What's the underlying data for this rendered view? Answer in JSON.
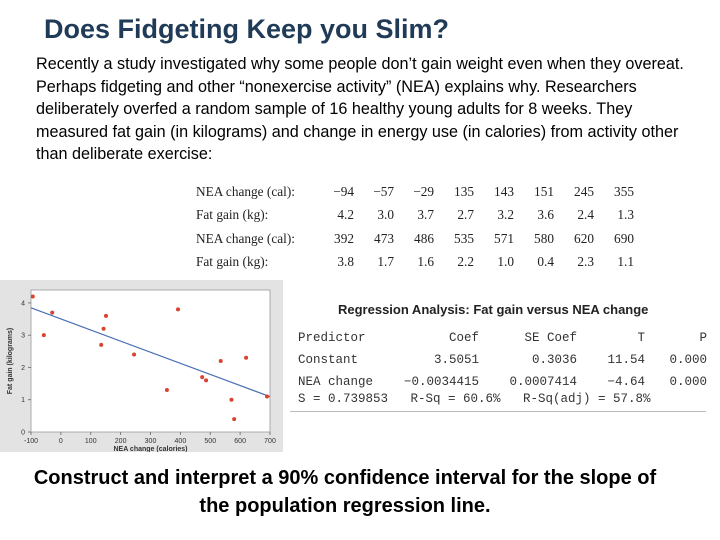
{
  "title": "Does Fidgeting Keep you Slim?",
  "intro": "Recently a study investigated why some people don’t gain weight even when they overeat. Perhaps fidgeting and other “nonexercise activity” (NEA) explains why. Researchers deliberately overfed a random sample of 16 healthy young adults for 8 weeks. They measured fat gain (in kilograms) and change in energy use (in calories) from activity other than deliberate exercise:",
  "data_table": {
    "rows": [
      {
        "label": "NEA change (cal):",
        "values": [
          "−94",
          "−57",
          "−29",
          "135",
          "143",
          "151",
          "245",
          "355"
        ]
      },
      {
        "label": "Fat gain (kg):",
        "values": [
          "4.2",
          "3.0",
          "3.7",
          "2.7",
          "3.2",
          "3.6",
          "2.4",
          "1.3"
        ]
      },
      {
        "label": "NEA change (cal):",
        "values": [
          "392",
          "473",
          "486",
          "535",
          "571",
          "580",
          "620",
          "690"
        ]
      },
      {
        "label": "Fat gain (kg):",
        "values": [
          "3.8",
          "1.7",
          "1.6",
          "2.2",
          "1.0",
          "0.4",
          "2.3",
          "1.1"
        ]
      }
    ]
  },
  "chart_data": {
    "type": "scatter",
    "xlabel": "NEA change (calories)",
    "ylabel": "Fat gain (kilograms)",
    "xlim": [
      -100,
      700
    ],
    "ylim": [
      0,
      4.4
    ],
    "xticks": [
      -100,
      0,
      100,
      200,
      300,
      400,
      500,
      600,
      700
    ],
    "yticks": [
      0,
      1,
      2,
      3,
      4
    ],
    "x": [
      -94,
      -57,
      -29,
      135,
      143,
      151,
      245,
      355,
      392,
      473,
      486,
      535,
      571,
      580,
      620,
      690
    ],
    "y": [
      4.2,
      3.0,
      3.7,
      2.7,
      3.2,
      3.6,
      2.4,
      1.3,
      3.8,
      1.7,
      1.6,
      2.2,
      1.0,
      0.4,
      2.3,
      1.1
    ],
    "regression_line": {
      "intercept": 3.5051,
      "slope": -0.0034415
    },
    "point_color": "#d9432f",
    "line_color": "#4a6fb5"
  },
  "regression": {
    "title": "Regression Analysis: Fat gain versus NEA change",
    "headers": [
      "Predictor",
      "Coef",
      "SE Coef",
      "T",
      "P"
    ],
    "rows": [
      [
        "Constant",
        "3.5051",
        "0.3036",
        "11.54",
        "0.000"
      ],
      [
        "NEA change",
        "−0.0034415",
        "0.0007414",
        "−4.64",
        "0.000"
      ]
    ],
    "summary": "S = 0.739853   R-Sq = 60.6%   R-Sq(adj) = 57.8%"
  },
  "question": "Construct and interpret a 90% confidence interval for the slope of the population regression line."
}
